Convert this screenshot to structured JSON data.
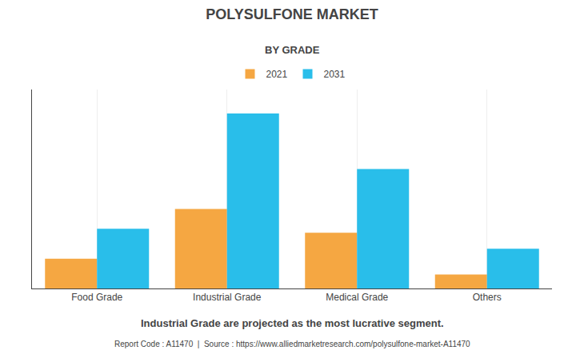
{
  "chart_data": {
    "type": "bar",
    "title": "POLYSULFONE MARKET",
    "subtitle": "BY GRADE",
    "categories": [
      "Food Grade",
      "Industrial Grade",
      "Medical Grade",
      "Others"
    ],
    "series": [
      {
        "name": "2021",
        "color": "#F5A742",
        "values": [
          15,
          40,
          28,
          7
        ]
      },
      {
        "name": "2031",
        "color": "#29BEEA",
        "values": [
          30,
          88,
          60,
          20
        ]
      }
    ],
    "ylim": [
      0,
      100
    ],
    "yticks": [],
    "grid": true,
    "legend": "top",
    "tick_labels": "x",
    "annotations": [
      "Industrial Grade are projected as the most lucrative segment.",
      "Report Code : A11470  |  Source : https://www.alliedmarketresearch.com/polysulfone-market-A11470"
    ]
  }
}
